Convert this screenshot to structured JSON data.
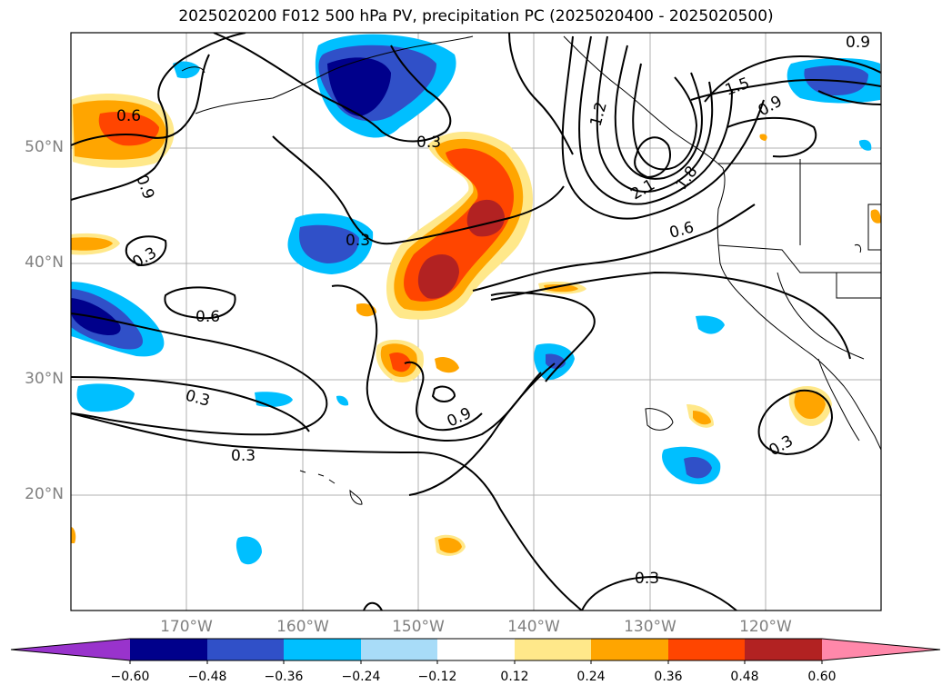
{
  "title": "2025020200 F012 500 hPa PV, precipitation PC (2025020400 - 2025020500)",
  "lat_labels": [
    "50°N",
    "40°N",
    "30°N",
    "20°N"
  ],
  "lon_labels": [
    "170°W",
    "160°W",
    "150°W",
    "140°W",
    "130°W",
    "120°W"
  ],
  "contour_labels": {
    "c1": "0.6",
    "c2": "0.9",
    "c3": "0.3",
    "c4": "0.3",
    "c5": "0.3",
    "c6": "0.6",
    "c7": "0.3",
    "c8": "0.3",
    "c9": "0.9",
    "c10": "0.3",
    "c11": "0.6",
    "c12": "1.2",
    "c13": "1.5",
    "c14": "0.9",
    "c15": "2.1",
    "c16": "1.8",
    "c17": "0.3",
    "c18": "0.9"
  },
  "colorbar": {
    "labels": [
      "−0.60",
      "−0.48",
      "−0.36",
      "−0.24",
      "−0.12",
      "0.12",
      "0.24",
      "0.36",
      "0.48",
      "0.60"
    ],
    "colors": {
      "neg_extend": "#9933cc",
      "n060": "#00008b",
      "n048": "#3050c8",
      "n036": "#00bfff",
      "n024": "#a8dcf8",
      "n012": "#ffffff",
      "p012": "#ffe88a",
      "p024": "#ffa500",
      "p036": "#ff4500",
      "p048": "#b22222",
      "pos_extend": "#ff88aa"
    }
  }
}
